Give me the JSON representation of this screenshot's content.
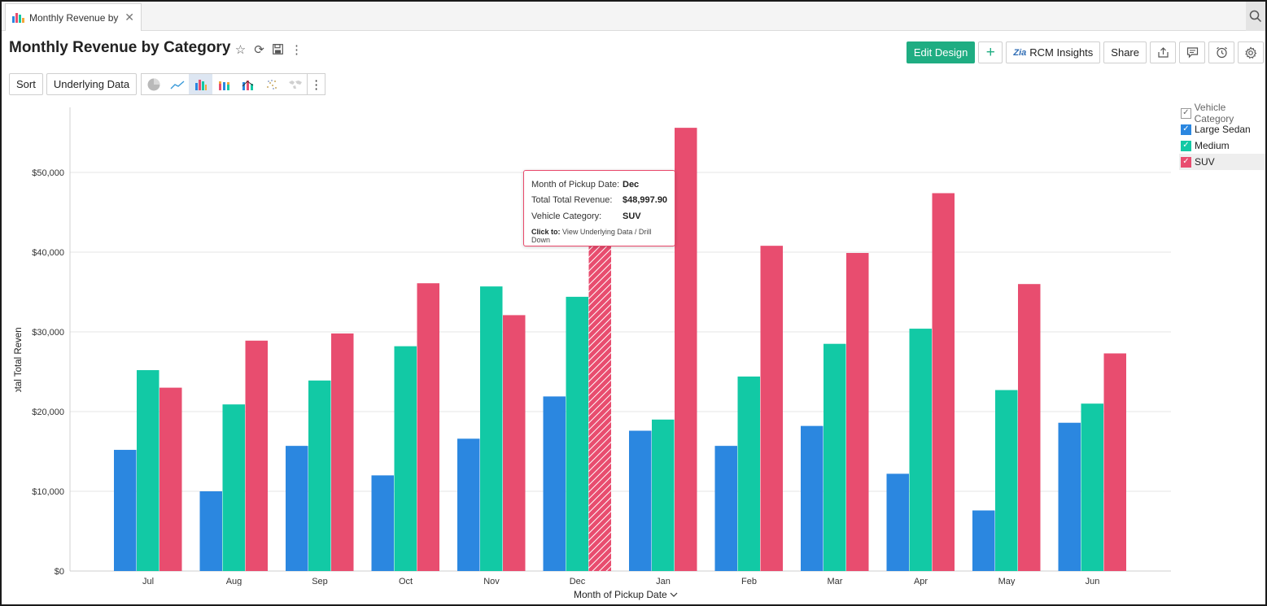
{
  "tab": {
    "label": "Monthly Revenue by ...",
    "close": "✕"
  },
  "header": {
    "title": "Monthly Revenue by Category"
  },
  "toolbar": {
    "edit_design": "Edit Design",
    "add": "+",
    "rcm_logo": "Zia",
    "rcm_insights": "RCM Insights",
    "share": "Share",
    "sort": "Sort",
    "underlying_data": "Underlying Data"
  },
  "colors": {
    "large_sedan": "#2b87e0",
    "medium": "#12c9a5",
    "suv": "#e84d6f",
    "accent": "#1fad82"
  },
  "legend": {
    "title": "Vehicle Category",
    "items": [
      {
        "label": "Large Sedan",
        "color": "#2b87e0"
      },
      {
        "label": "Medium",
        "color": "#12c9a5"
      },
      {
        "label": "SUV",
        "color": "#e84d6f"
      }
    ]
  },
  "tooltip": {
    "month_label": "Month of Pickup Date:",
    "month_value": "Dec",
    "revenue_label": "Total Total Revenue:",
    "revenue_value": "$48,997.90",
    "category_label": "Vehicle Category:",
    "category_value": "SUV",
    "click_label": "Click to:",
    "click_text": "View Underlying Data / Drill Down"
  },
  "chart_data": {
    "type": "bar",
    "xlabel": "Month of Pickup Date",
    "ylabel": "Total Total Revenue",
    "ylim": [
      0,
      55000
    ],
    "yticks": [
      0,
      10000,
      20000,
      30000,
      40000,
      50000
    ],
    "ytick_labels": [
      "$0",
      "$10,000",
      "$20,000",
      "$30,000",
      "$40,000",
      "$50,000"
    ],
    "categories": [
      "Jul",
      "Aug",
      "Sep",
      "Oct",
      "Nov",
      "Dec",
      "Jan",
      "Feb",
      "Mar",
      "Apr",
      "May",
      "Jun"
    ],
    "series": [
      {
        "name": "Large Sedan",
        "color": "#2b87e0",
        "values": [
          15200,
          10000,
          15700,
          12000,
          16600,
          21900,
          17600,
          15700,
          18200,
          12200,
          7600,
          18600
        ]
      },
      {
        "name": "Medium",
        "color": "#12c9a5",
        "values": [
          25200,
          20900,
          23900,
          28200,
          35700,
          34400,
          19000,
          24400,
          28500,
          30400,
          22700,
          21000
        ]
      },
      {
        "name": "SUV",
        "color": "#e84d6f",
        "values": [
          23000,
          28900,
          29800,
          36100,
          32100,
          48997.9,
          55600,
          40800,
          39900,
          47400,
          36000,
          27300
        ]
      }
    ],
    "highlighted": {
      "category": "Dec",
      "series": "SUV"
    },
    "grid": true,
    "legend_position": "top-right"
  }
}
